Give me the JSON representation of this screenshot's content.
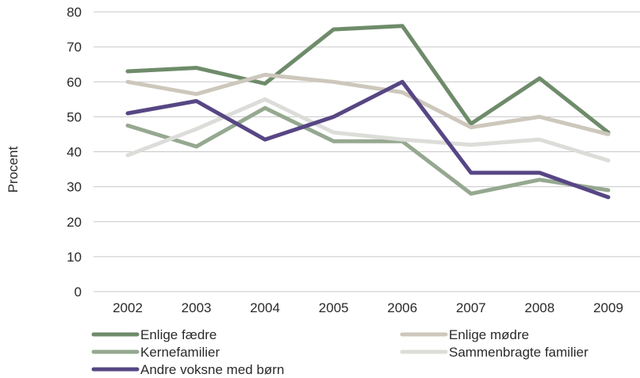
{
  "chart_data": {
    "type": "line",
    "title": "",
    "xlabel": "",
    "ylabel": "Procent",
    "ylim": [
      0,
      80
    ],
    "yticks": [
      0,
      10,
      20,
      30,
      40,
      50,
      60,
      70,
      80
    ],
    "categories": [
      "2002",
      "2003",
      "2004",
      "2005",
      "2006",
      "2007",
      "2008",
      "2009"
    ],
    "grid": "horizontal",
    "legend_position": "bottom",
    "series": [
      {
        "name": "Enlige fædre",
        "color": "#6e8b6a",
        "values": [
          63,
          64,
          59.5,
          75,
          76,
          48,
          61,
          45.5
        ]
      },
      {
        "name": "Enlige mødre",
        "color": "#cdc7bc",
        "values": [
          60,
          56.5,
          62,
          60,
          57,
          47,
          50,
          45
        ]
      },
      {
        "name": "Kernefamilier",
        "color": "#95a890",
        "values": [
          47.5,
          41.5,
          52.5,
          43,
          43,
          28,
          32,
          29
        ]
      },
      {
        "name": "Sammenbragte familier",
        "color": "#dcdcd9",
        "values": [
          39,
          46.5,
          55,
          45.5,
          43.5,
          42,
          43.5,
          37.5
        ]
      },
      {
        "name": "Andre voksne med børn",
        "color": "#574684",
        "values": [
          51,
          54.5,
          43.5,
          50,
          60,
          34,
          34,
          27
        ]
      }
    ]
  }
}
